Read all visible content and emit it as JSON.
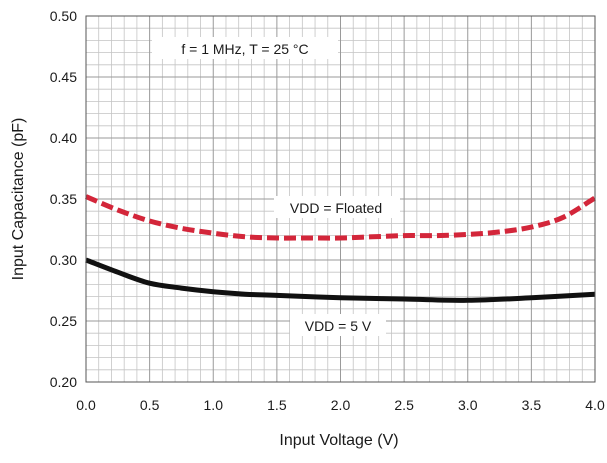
{
  "chart_data": {
    "type": "line",
    "title": "",
    "xlabel": "Input Voltage (V)",
    "ylabel": "Input Capacitance (pF)",
    "xlim": [
      0.0,
      4.0
    ],
    "ylim": [
      0.2,
      0.5
    ],
    "x_ticks": [
      "0.0",
      "0.5",
      "1.0",
      "1.5",
      "2.0",
      "2.5",
      "3.0",
      "3.5",
      "4.0"
    ],
    "y_ticks": [
      "0.20",
      "0.25",
      "0.30",
      "0.35",
      "0.40",
      "0.45",
      "0.50"
    ],
    "grid": true,
    "annotations": [
      "f = 1 MHz, T = 25 °C"
    ],
    "series": [
      {
        "name": "VDD = Floated",
        "color": "#d3263a",
        "style": "dashed",
        "x": [
          0.0,
          0.25,
          0.5,
          0.75,
          1.0,
          1.25,
          1.5,
          1.75,
          2.0,
          2.25,
          2.5,
          2.75,
          3.0,
          3.25,
          3.5,
          3.75,
          4.0
        ],
        "y": [
          0.352,
          0.341,
          0.332,
          0.326,
          0.322,
          0.319,
          0.318,
          0.318,
          0.318,
          0.319,
          0.32,
          0.32,
          0.321,
          0.323,
          0.327,
          0.335,
          0.351
        ]
      },
      {
        "name": "VDD = 5 V",
        "color": "#111111",
        "style": "solid",
        "x": [
          0.0,
          0.25,
          0.5,
          0.75,
          1.0,
          1.25,
          1.5,
          2.0,
          2.5,
          3.0,
          3.5,
          4.0
        ],
        "y": [
          0.3,
          0.29,
          0.281,
          0.277,
          0.274,
          0.272,
          0.271,
          0.269,
          0.268,
          0.267,
          0.269,
          0.272
        ]
      }
    ]
  }
}
